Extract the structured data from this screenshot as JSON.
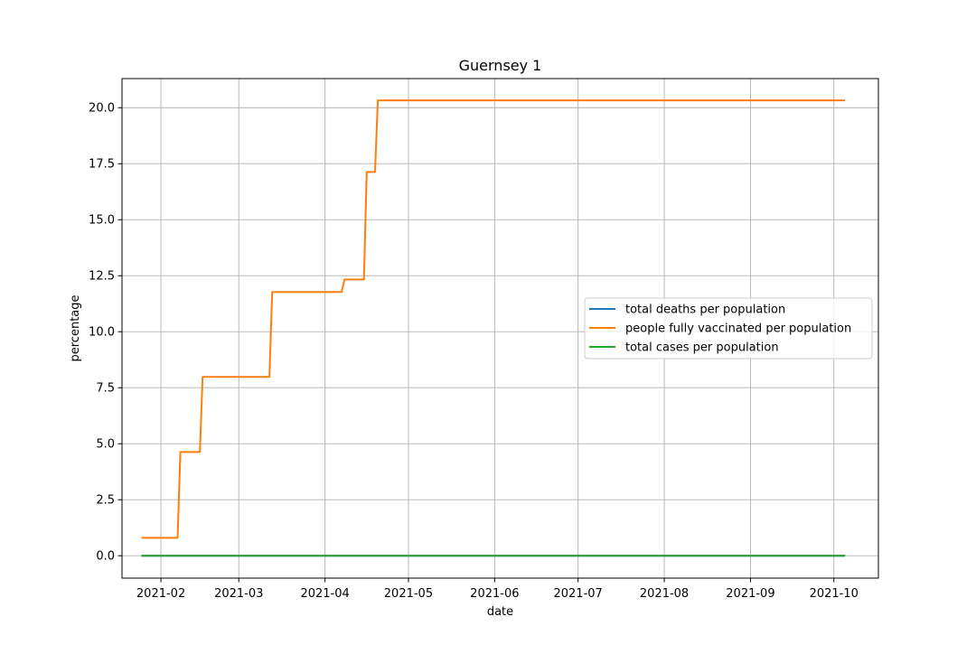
{
  "chart_data": {
    "type": "line",
    "title": "Guernsey 1",
    "xlabel": "date",
    "ylabel": "percentage",
    "x_axis": "date",
    "xlim": [
      "2021-01-18",
      "2021-10-17"
    ],
    "ylim": [
      -1.0,
      21.3
    ],
    "x_ticks": [
      "2021-02",
      "2021-03",
      "2021-04",
      "2021-05",
      "2021-06",
      "2021-07",
      "2021-08",
      "2021-09",
      "2021-10"
    ],
    "y_ticks": [
      "0.0",
      "2.5",
      "5.0",
      "7.5",
      "10.0",
      "12.5",
      "15.0",
      "17.5",
      "20.0"
    ],
    "grid": true,
    "legend_position": "center-right",
    "series": [
      {
        "name": "total deaths per population",
        "color": "#1f77b4",
        "points": [
          [
            "2021-01-25",
            0.0
          ],
          [
            "2021-10-05",
            0.0
          ]
        ]
      },
      {
        "name": "people fully vaccinated per population",
        "color": "#ff7f0e",
        "points": [
          [
            "2021-01-25",
            0.8
          ],
          [
            "2021-02-07",
            0.8
          ],
          [
            "2021-02-08",
            4.63
          ],
          [
            "2021-02-15",
            4.63
          ],
          [
            "2021-02-16",
            7.98
          ],
          [
            "2021-03-12",
            7.98
          ],
          [
            "2021-03-13",
            11.77
          ],
          [
            "2021-04-07",
            11.77
          ],
          [
            "2021-04-08",
            12.33
          ],
          [
            "2021-04-15",
            12.33
          ],
          [
            "2021-04-16",
            17.13
          ],
          [
            "2021-04-19",
            17.13
          ],
          [
            "2021-04-20",
            20.33
          ],
          [
            "2021-10-05",
            20.33
          ]
        ]
      },
      {
        "name": "total cases per population",
        "color": "#2ca02c",
        "points": [
          [
            "2021-01-25",
            0.0
          ],
          [
            "2021-10-05",
            0.0
          ]
        ]
      }
    ]
  }
}
